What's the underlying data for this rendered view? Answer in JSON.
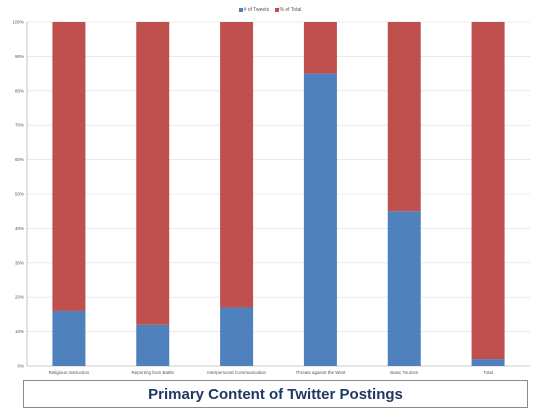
{
  "chart_data": {
    "type": "bar",
    "stacked": true,
    "title": "Primary Content of Twitter Postings",
    "categories": [
      "Religious Instruction",
      "Reporting from Battle",
      "Interpersonal Communication",
      "Threats against the West",
      "Basic Tourism",
      "Total"
    ],
    "series": [
      {
        "name": "# of Tweets",
        "color": "#4f81bd",
        "values": [
          16,
          12,
          17,
          85,
          45,
          2
        ]
      },
      {
        "name": "% of Total",
        "color": "#c0504d",
        "values": [
          84,
          88,
          83,
          15,
          55,
          98
        ]
      }
    ],
    "ylim": [
      0,
      100
    ],
    "yticks": [
      "0%",
      "10%",
      "20%",
      "30%",
      "40%",
      "50%",
      "60%",
      "70%",
      "80%",
      "90%",
      "100%"
    ],
    "grid": true,
    "legend": "top-center",
    "xlabel": "",
    "ylabel": ""
  }
}
